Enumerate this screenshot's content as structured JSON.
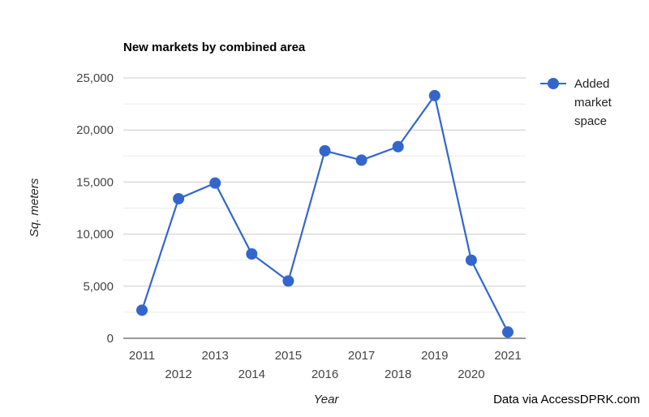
{
  "chart_data": {
    "type": "line",
    "title": "New markets by combined area",
    "xlabel": "Year",
    "ylabel": "Sq. meters",
    "x": [
      "2011",
      "2012",
      "2013",
      "2014",
      "2015",
      "2016",
      "2017",
      "2018",
      "2019",
      "2020",
      "2021"
    ],
    "series": [
      {
        "name": "Added market space",
        "values": [
          2700,
          13400,
          14900,
          8100,
          5500,
          18000,
          17100,
          18400,
          23300,
          7500,
          600
        ],
        "color": "#3366cc"
      }
    ],
    "ylim": [
      0,
      25000
    ],
    "yticks": [
      0,
      5000,
      10000,
      15000,
      20000,
      25000
    ],
    "ytick_labels": [
      "0",
      "5,000",
      "10,000",
      "15,000",
      "20,000",
      "25,000"
    ],
    "grid": true,
    "legend_position": "right",
    "legend_lines": [
      "Added",
      "market",
      "space"
    ]
  },
  "credit": "Data via AccessDPRK.com"
}
